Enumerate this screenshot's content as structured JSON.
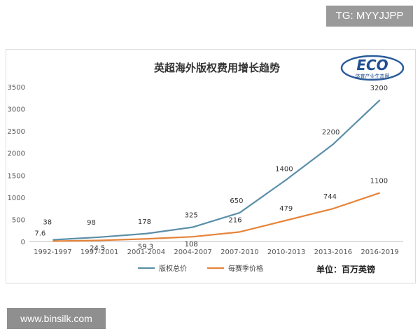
{
  "watermarks": {
    "top": "TG: MYYJJPP",
    "bottom": "www.binsilk.com"
  },
  "logo": {
    "text": "ECO",
    "subtext": "体育产业生态圈"
  },
  "unit_label": "单位：百万英镑",
  "colors": {
    "series1": "#5b8fa8",
    "series2": "#e6843a"
  },
  "chart_data": {
    "type": "line",
    "title": "英超海外版权费用增长趋势",
    "categories": [
      "1992-1997",
      "1997-2001",
      "2001-2004",
      "2004-2007",
      "2007-2010",
      "2010-2013",
      "2013-2016",
      "2016-2019"
    ],
    "series": [
      {
        "name": "版权总价",
        "values": [
          38,
          98,
          178,
          325,
          650,
          1400,
          2200,
          3200
        ],
        "labels": [
          "38",
          "98",
          "178",
          "325",
          "650",
          "1400",
          "2200",
          "3200"
        ]
      },
      {
        "name": "每赛季价格",
        "values": [
          7.6,
          24.5,
          59.3,
          108,
          216,
          479,
          744,
          1100
        ],
        "labels": [
          "7.6",
          "24.5",
          "59.3",
          "108",
          "216",
          "479",
          "744",
          "1100"
        ]
      }
    ],
    "ylim": [
      0,
      3500
    ],
    "yticks": [
      0,
      500,
      1000,
      1500,
      2000,
      2500,
      3000,
      3500
    ],
    "grid": false,
    "legend": "bottom"
  }
}
